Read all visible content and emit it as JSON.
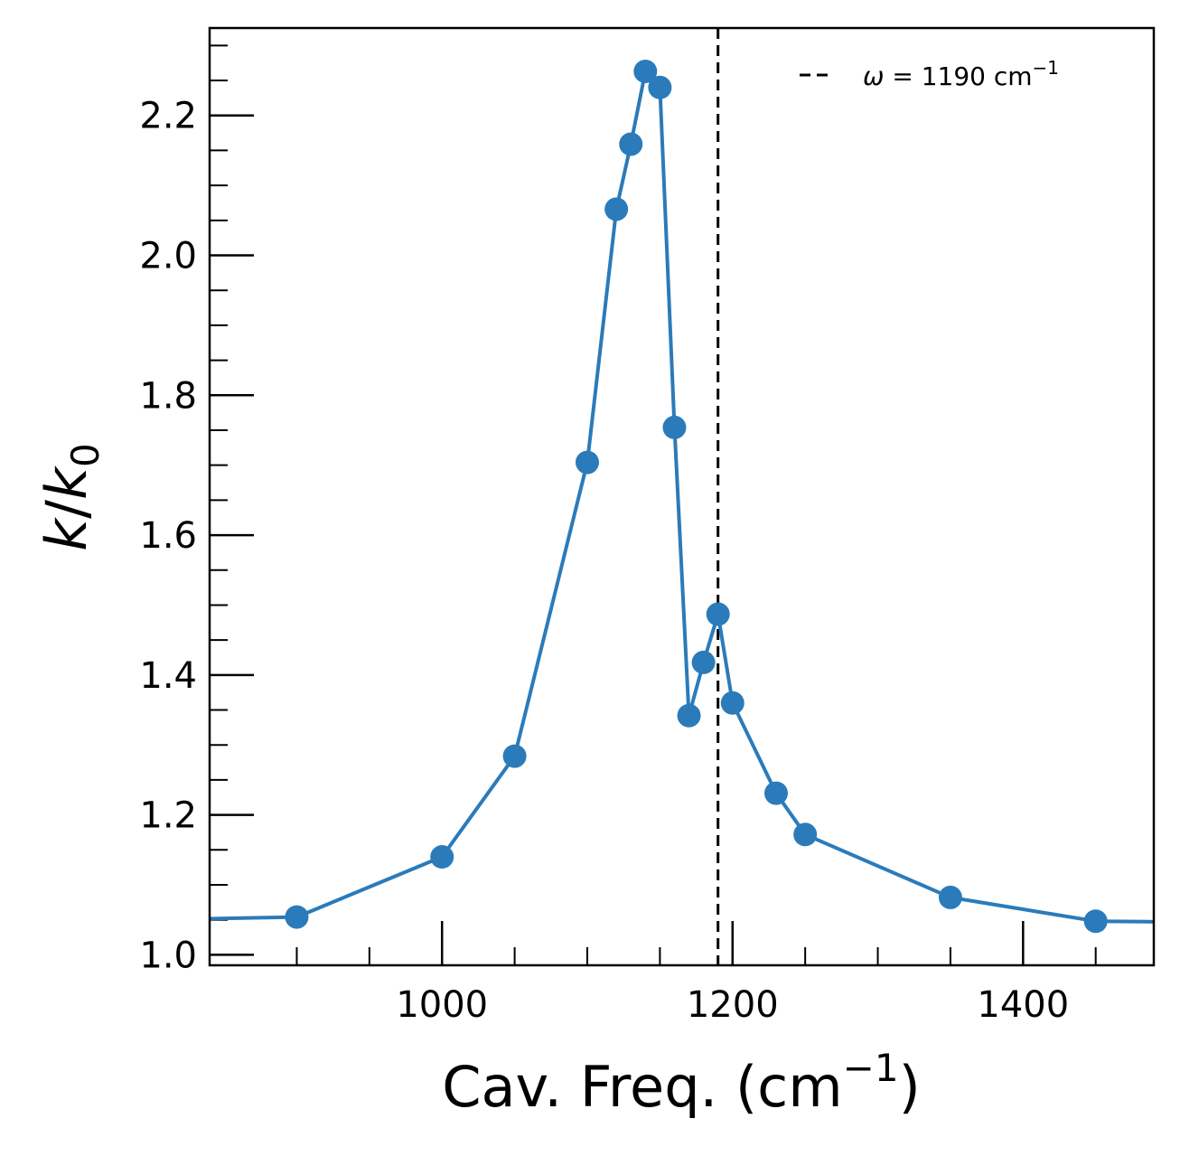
{
  "chart_data": {
    "type": "line",
    "xlabel_main": "Cav. Freq. (cm",
    "xlabel_sup": "−1",
    "xlabel_end": ")",
    "ylabel_k": "k",
    "ylabel_slash": "/",
    "ylabel_k0": "k",
    "ylabel_sub": "0",
    "xlim": [
      840,
      1490
    ],
    "ylim": [
      0.985,
      2.325
    ],
    "x_ticks": [
      1000,
      1200,
      1400
    ],
    "x_tick_labels": [
      "1000",
      "1200",
      "1400"
    ],
    "x_minor_ticks": [
      900,
      950,
      1050,
      1100,
      1150,
      1250,
      1300,
      1350,
      1450
    ],
    "y_ticks": [
      1.0,
      1.2,
      1.4,
      1.6,
      1.8,
      2.0,
      2.2
    ],
    "y_tick_labels": [
      "1.0",
      "1.2",
      "1.4",
      "1.6",
      "1.8",
      "2.0",
      "2.2"
    ],
    "y_minor_ticks": [
      1.05,
      1.1,
      1.15,
      1.25,
      1.3,
      1.35,
      1.45,
      1.5,
      1.55,
      1.65,
      1.7,
      1.75,
      1.85,
      1.9,
      1.95,
      2.05,
      2.1,
      2.15,
      2.25,
      2.3
    ],
    "series": [
      {
        "color": "#2b7bba",
        "markers": true,
        "x": [
          800,
          900,
          1000,
          1050,
          1100,
          1120,
          1130,
          1140,
          1150,
          1160,
          1170,
          1180,
          1190,
          1200,
          1230,
          1250,
          1350,
          1450,
          1500
        ],
        "y": [
          1.05,
          1.054,
          1.14,
          1.284,
          1.704,
          2.066,
          2.159,
          2.263,
          2.24,
          1.754,
          1.342,
          1.418,
          1.487,
          1.36,
          1.231,
          1.172,
          1.082,
          1.048,
          1.047
        ],
        "marker_x": [
          900,
          1000,
          1050,
          1100,
          1120,
          1130,
          1140,
          1150,
          1160,
          1170,
          1180,
          1190,
          1200,
          1230,
          1250,
          1350,
          1450
        ],
        "marker_y": [
          1.054,
          1.14,
          1.284,
          1.704,
          2.066,
          2.159,
          2.263,
          2.24,
          1.754,
          1.342,
          1.418,
          1.487,
          1.36,
          1.231,
          1.172,
          1.082,
          1.048
        ]
      }
    ],
    "vline": {
      "x": 1190,
      "color": "#000000",
      "style": "dashed"
    },
    "legend": {
      "placement": "top-right",
      "symbol": "ω",
      "text": " = 1190 cm",
      "sup": "−1"
    },
    "grid": false
  }
}
